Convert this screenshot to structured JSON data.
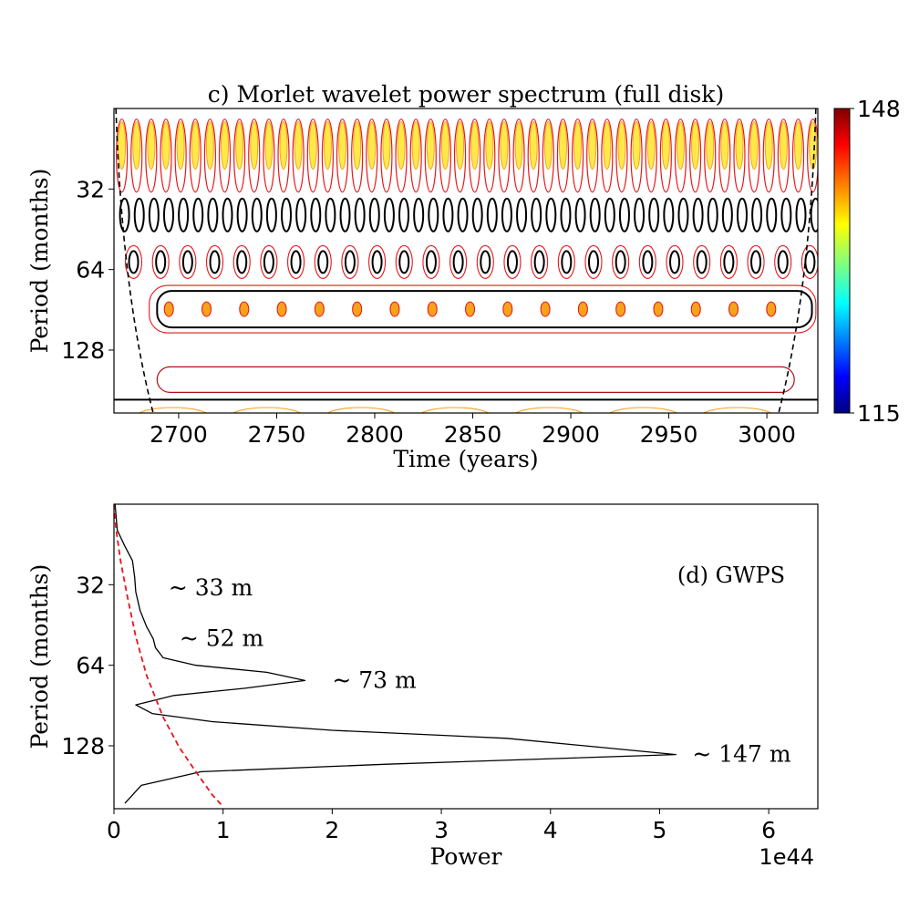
{
  "chart_data": [
    {
      "type": "heatmap",
      "title": "c) Morlet wavelet power spectrum (full disk)",
      "xlabel": "Time (years)",
      "ylabel": "Period (months)",
      "xlim": [
        2667,
        3026
      ],
      "ylim": [
        16,
        220
      ],
      "y_scale": "log2",
      "y_inverted": true,
      "x_ticks": [
        2700,
        2750,
        2800,
        2850,
        2900,
        2950,
        3000
      ],
      "y_ticks": [
        32,
        64,
        128
      ],
      "colorbar": {
        "min": 115,
        "max": 148,
        "colormap": "jet"
      },
      "band_periods": [
        40,
        60,
        90,
        165
      ],
      "band_spacing_years": 12,
      "cone_of_influence_width_years": 20
    },
    {
      "type": "line",
      "title": "(d) GWPS",
      "xlabel": "Power",
      "ylabel": "Period (months)",
      "xlim": [
        0,
        6.45
      ],
      "ylim": [
        16,
        220
      ],
      "y_scale": "log2",
      "y_inverted": true,
      "x_ticks": [
        0,
        1,
        2,
        3,
        4,
        5,
        6
      ],
      "y_ticks": [
        32,
        64,
        128
      ],
      "x_offset_label": "1e44",
      "series": [
        {
          "points": [
            [
              0.01,
              16
            ],
            [
              0.03,
              20
            ],
            [
              0.1,
              23
            ],
            [
              0.17,
              26
            ],
            [
              0.19,
              30
            ],
            [
              0.2,
              34
            ],
            [
              0.24,
              40
            ],
            [
              0.3,
              46
            ],
            [
              0.36,
              51
            ],
            [
              0.38,
              55
            ],
            [
              0.45,
              60
            ],
            [
              0.75,
              64
            ],
            [
              1.4,
              68
            ],
            [
              1.75,
              73
            ],
            [
              1.2,
              78
            ],
            [
              0.55,
              83
            ],
            [
              0.2,
              90
            ],
            [
              0.35,
              97
            ],
            [
              0.9,
              104
            ],
            [
              2.0,
              112
            ],
            [
              3.6,
              120
            ],
            [
              5.15,
              138
            ],
            [
              2.5,
              150
            ],
            [
              0.8,
              160
            ],
            [
              0.25,
              180
            ],
            [
              0.1,
              210
            ]
          ]
        },
        {
          "dashed": true,
          "color": "#e8161b",
          "points": [
            [
              0.0,
              16
            ],
            [
              0.02,
              20
            ],
            [
              0.06,
              26
            ],
            [
              0.12,
              35
            ],
            [
              0.2,
              50
            ],
            [
              0.3,
              70
            ],
            [
              0.45,
              100
            ],
            [
              0.6,
              130
            ],
            [
              0.75,
              160
            ],
            [
              0.9,
              195
            ],
            [
              1.0,
              216
            ]
          ]
        }
      ],
      "annotations": [
        {
          "text": "~ 33 m",
          "x": 0.5,
          "y": 33
        },
        {
          "text": "~ 52 m",
          "x": 0.6,
          "y": 51
        },
        {
          "text": "~ 73 m",
          "x": 2.0,
          "y": 73
        },
        {
          "text": "~ 147 m",
          "x": 5.3,
          "y": 138
        }
      ]
    }
  ],
  "colors": {
    "contour_black": "#000000",
    "coi": "#000000",
    "significance_red": "#e8161b"
  }
}
